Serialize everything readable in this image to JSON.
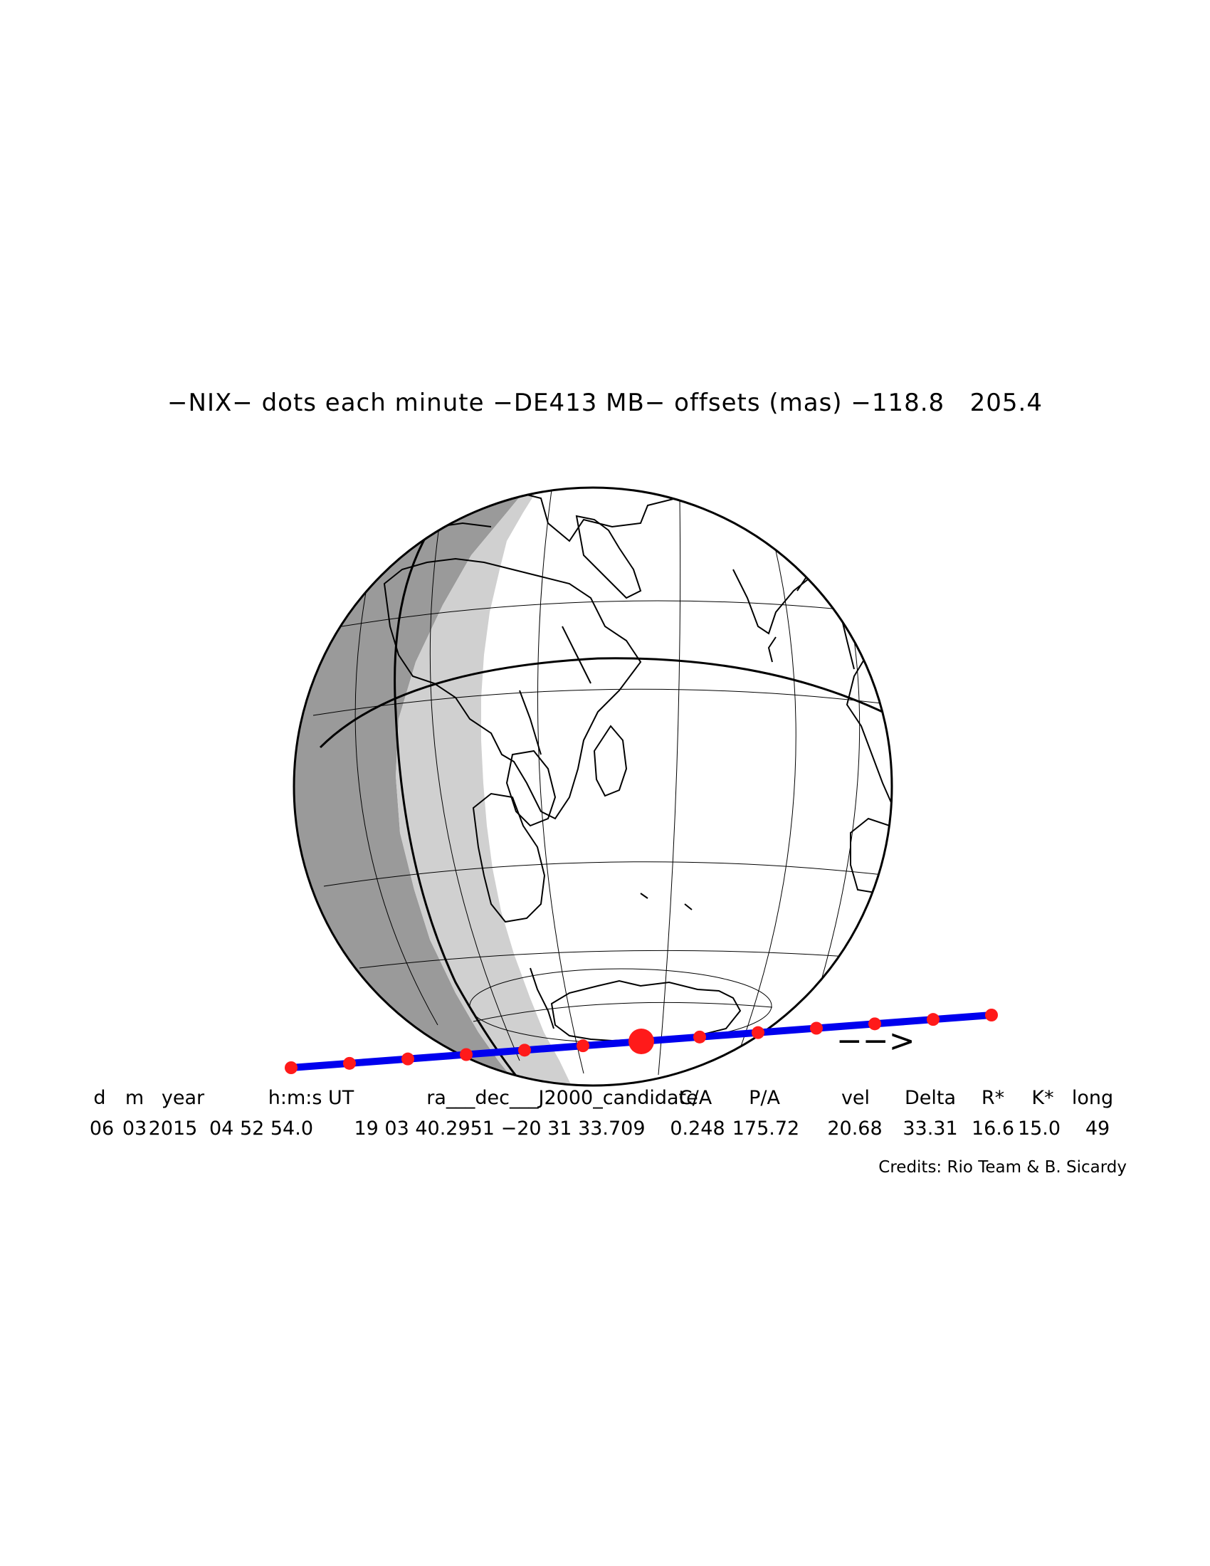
{
  "plot": {
    "title": "−NIX− dots each minute −DE413 MB− offsets (mas) −118.8   205.4",
    "credits": "Credits: Rio Team & B. Sicardy",
    "direction_arrow": "−−>",
    "colors": {
      "path": "#0000ee",
      "dots": "#ff1a1a",
      "night": "#9a9a9a",
      "twilight": "#d0d0d0",
      "land": "#000000"
    }
  },
  "table": {
    "headers": [
      "d",
      "m",
      "year",
      "h:m:s UT",
      "ra___dec___J2000_candidate",
      "C/A",
      "P/A",
      "vel",
      "Delta",
      "R*",
      "K*",
      "long"
    ],
    "values": [
      "06",
      "03",
      "2015",
      "04 52 54.0",
      "19 03 40.2951 −20 31 33.709",
      "0.248",
      "175.72",
      "20.68",
      "33.31",
      "16.6",
      "15.0",
      "49"
    ]
  },
  "chart_data": {
    "type": "map",
    "projection": "orthographic",
    "event": {
      "object": "NIX",
      "date": "06 03 2015",
      "time_ut": "04 52 54.0"
    },
    "shadow_path": {
      "dots": 13,
      "dot_interval": "1 minute",
      "central_instant_dot": 7,
      "direction": "west to east"
    }
  }
}
